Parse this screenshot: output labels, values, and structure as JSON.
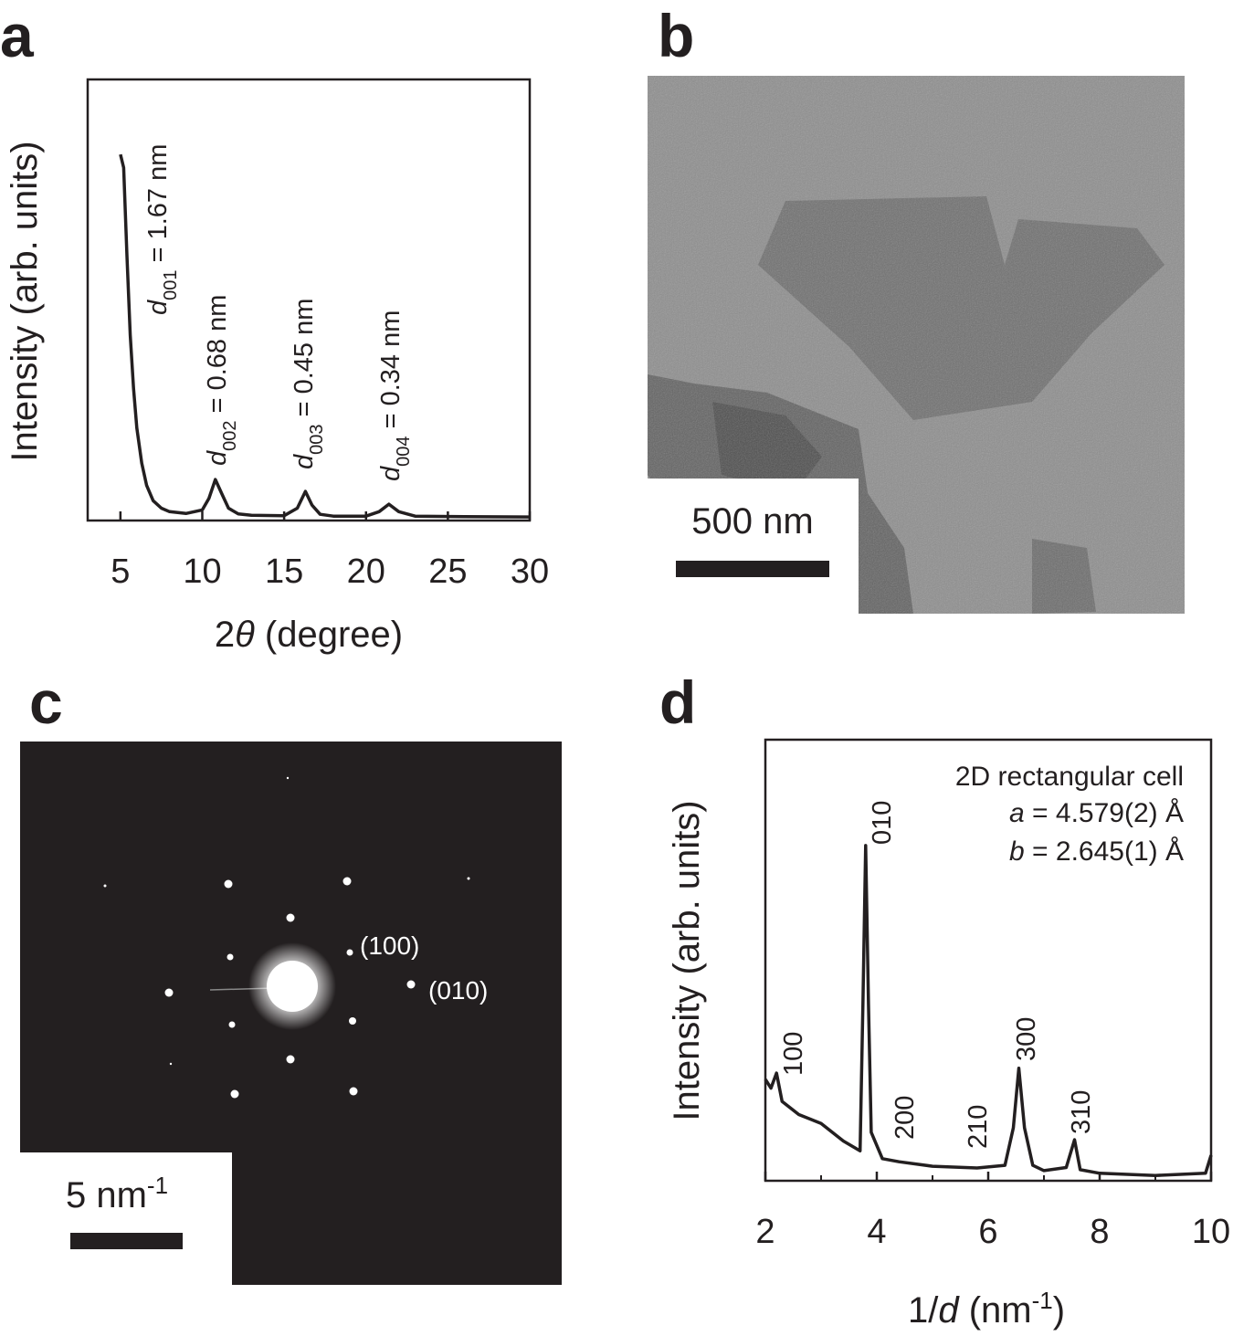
{
  "chart_data": [
    {
      "type": "line",
      "panel": "a",
      "ylabel": "Intensity (arb. units)",
      "xlabel": [
        {
          "text": "2"
        },
        {
          "text": "θ",
          "style": "italic"
        },
        {
          "text": " (degree)"
        }
      ],
      "x": [
        5.0,
        5.2,
        5.4,
        5.6,
        5.8,
        6.0,
        6.3,
        6.6,
        7.0,
        7.5,
        8.0,
        9.0,
        10.0,
        10.4,
        10.8,
        11.2,
        11.6,
        12.2,
        13.0,
        15.0,
        15.8,
        16.3,
        16.7,
        17.2,
        18.0,
        20.0,
        20.8,
        21.4,
        22.0,
        23.0,
        26.0,
        30.0
      ],
      "values": [
        83,
        80,
        60,
        42,
        30,
        21,
        13,
        8,
        4.5,
        2.8,
        2.0,
        1.6,
        2.4,
        5,
        9.3,
        6,
        2.8,
        1.5,
        1.2,
        1.1,
        2.8,
        6.6,
        3.5,
        1.4,
        1.0,
        1.0,
        2.0,
        3.7,
        2.0,
        1.0,
        0.9,
        0.8
      ],
      "color": "#231f20",
      "xlim": [
        3,
        30
      ],
      "xticks": [
        5,
        10,
        15,
        20,
        25,
        30
      ],
      "ylim": [
        0,
        100
      ],
      "annotations": [
        {
          "symbol": "d",
          "subscript": "001",
          "text": " = 1.67 nm"
        },
        {
          "symbol": "d",
          "subscript": "002",
          "text": " = 0.68 nm"
        },
        {
          "symbol": "d",
          "subscript": "003",
          "text": " = 0.45 nm"
        },
        {
          "symbol": "d",
          "subscript": "004",
          "text": " = 0.34 nm"
        }
      ]
    },
    {
      "type": "line",
      "panel": "d",
      "ylabel": "Intensity (arb. units)",
      "xlabel": [
        {
          "text": "1/"
        },
        {
          "text": "d",
          "style": "italic"
        },
        {
          "text": " (nm"
        },
        {
          "text": "-1",
          "style": "sup"
        },
        {
          "text": ")"
        }
      ],
      "x": [
        2.0,
        2.1,
        2.2,
        2.3,
        2.6,
        3.0,
        3.4,
        3.7,
        3.75,
        3.8,
        3.85,
        3.9,
        4.1,
        4.4,
        5.0,
        5.8,
        6.3,
        6.45,
        6.55,
        6.65,
        6.8,
        7.0,
        7.4,
        7.55,
        7.65,
        8.0,
        9.0,
        9.9,
        10.0
      ],
      "values": [
        23,
        21,
        24.4,
        18,
        15,
        13,
        9,
        6.8,
        40,
        76,
        40,
        11,
        5,
        4.3,
        3.3,
        2.9,
        3.5,
        12,
        25.5,
        12,
        3.5,
        2.3,
        3,
        9.3,
        2.5,
        1.7,
        1.2,
        1.7,
        5.8
      ],
      "color": "#231f20",
      "xlim": [
        2,
        10
      ],
      "xticks": [
        2,
        4,
        6,
        8,
        10
      ],
      "xminor": [
        3,
        5,
        7,
        9
      ],
      "ylim": [
        0,
        100
      ],
      "peak_labels": [
        "100",
        "010",
        "200",
        "210",
        "300",
        "310"
      ],
      "legend_title": "2D rectangular cell",
      "legend": [
        {
          "symbol": "a",
          "text": " = 4.579(2) Å"
        },
        {
          "symbol": "b",
          "text": " = 2.645(1) Å"
        }
      ]
    }
  ],
  "images": [
    {
      "panel": "b",
      "scale_bar": "500 nm"
    },
    {
      "panel": "c",
      "scale_bar": [
        {
          "text": "5 nm"
        },
        {
          "text": "-1",
          "style": "sup"
        }
      ],
      "labels": [
        "(100)",
        "(010)"
      ]
    }
  ]
}
